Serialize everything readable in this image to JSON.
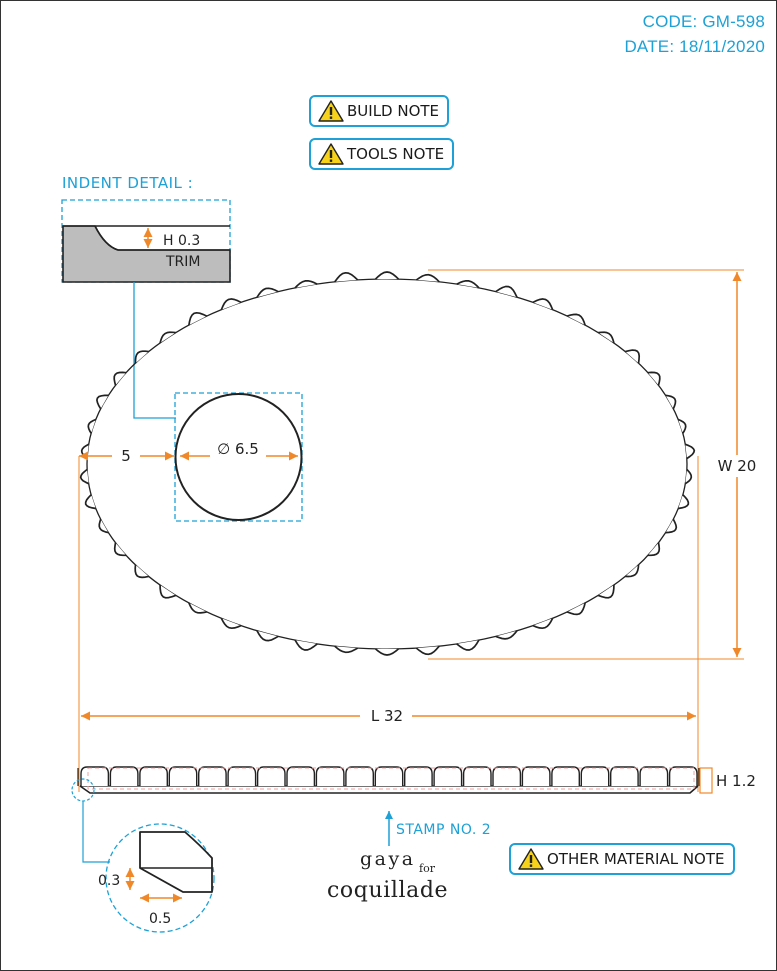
{
  "header": {
    "code": "CODE: GM-598",
    "date": "DATE: 18/11/2020"
  },
  "notes": {
    "build": "BUILD NOTE",
    "tools": "TOOLS NOTE",
    "other_material": "OTHER MATERIAL NOTE"
  },
  "indent_detail": {
    "title": "INDENT DETAIL :",
    "height_label": "H 0.3",
    "trim_label": "TRIM"
  },
  "dimensions": {
    "hole_diameter": "∅ 6.5",
    "edge_offset": "5",
    "width": "W 20",
    "length": "L 32",
    "height": "H 1.2",
    "bevel_height": "0.3",
    "bevel_width": "0.5"
  },
  "stamp": {
    "label": "STAMP NO. 2"
  },
  "brand": {
    "line1": "gaya",
    "line2": "for",
    "line3": "coquillade"
  },
  "colors": {
    "accent_cyan": "#1da1d6",
    "dimension_orange": "#f0882a",
    "trim_fill": "#bdbdbd",
    "warning_yellow": "#f7d21a"
  }
}
